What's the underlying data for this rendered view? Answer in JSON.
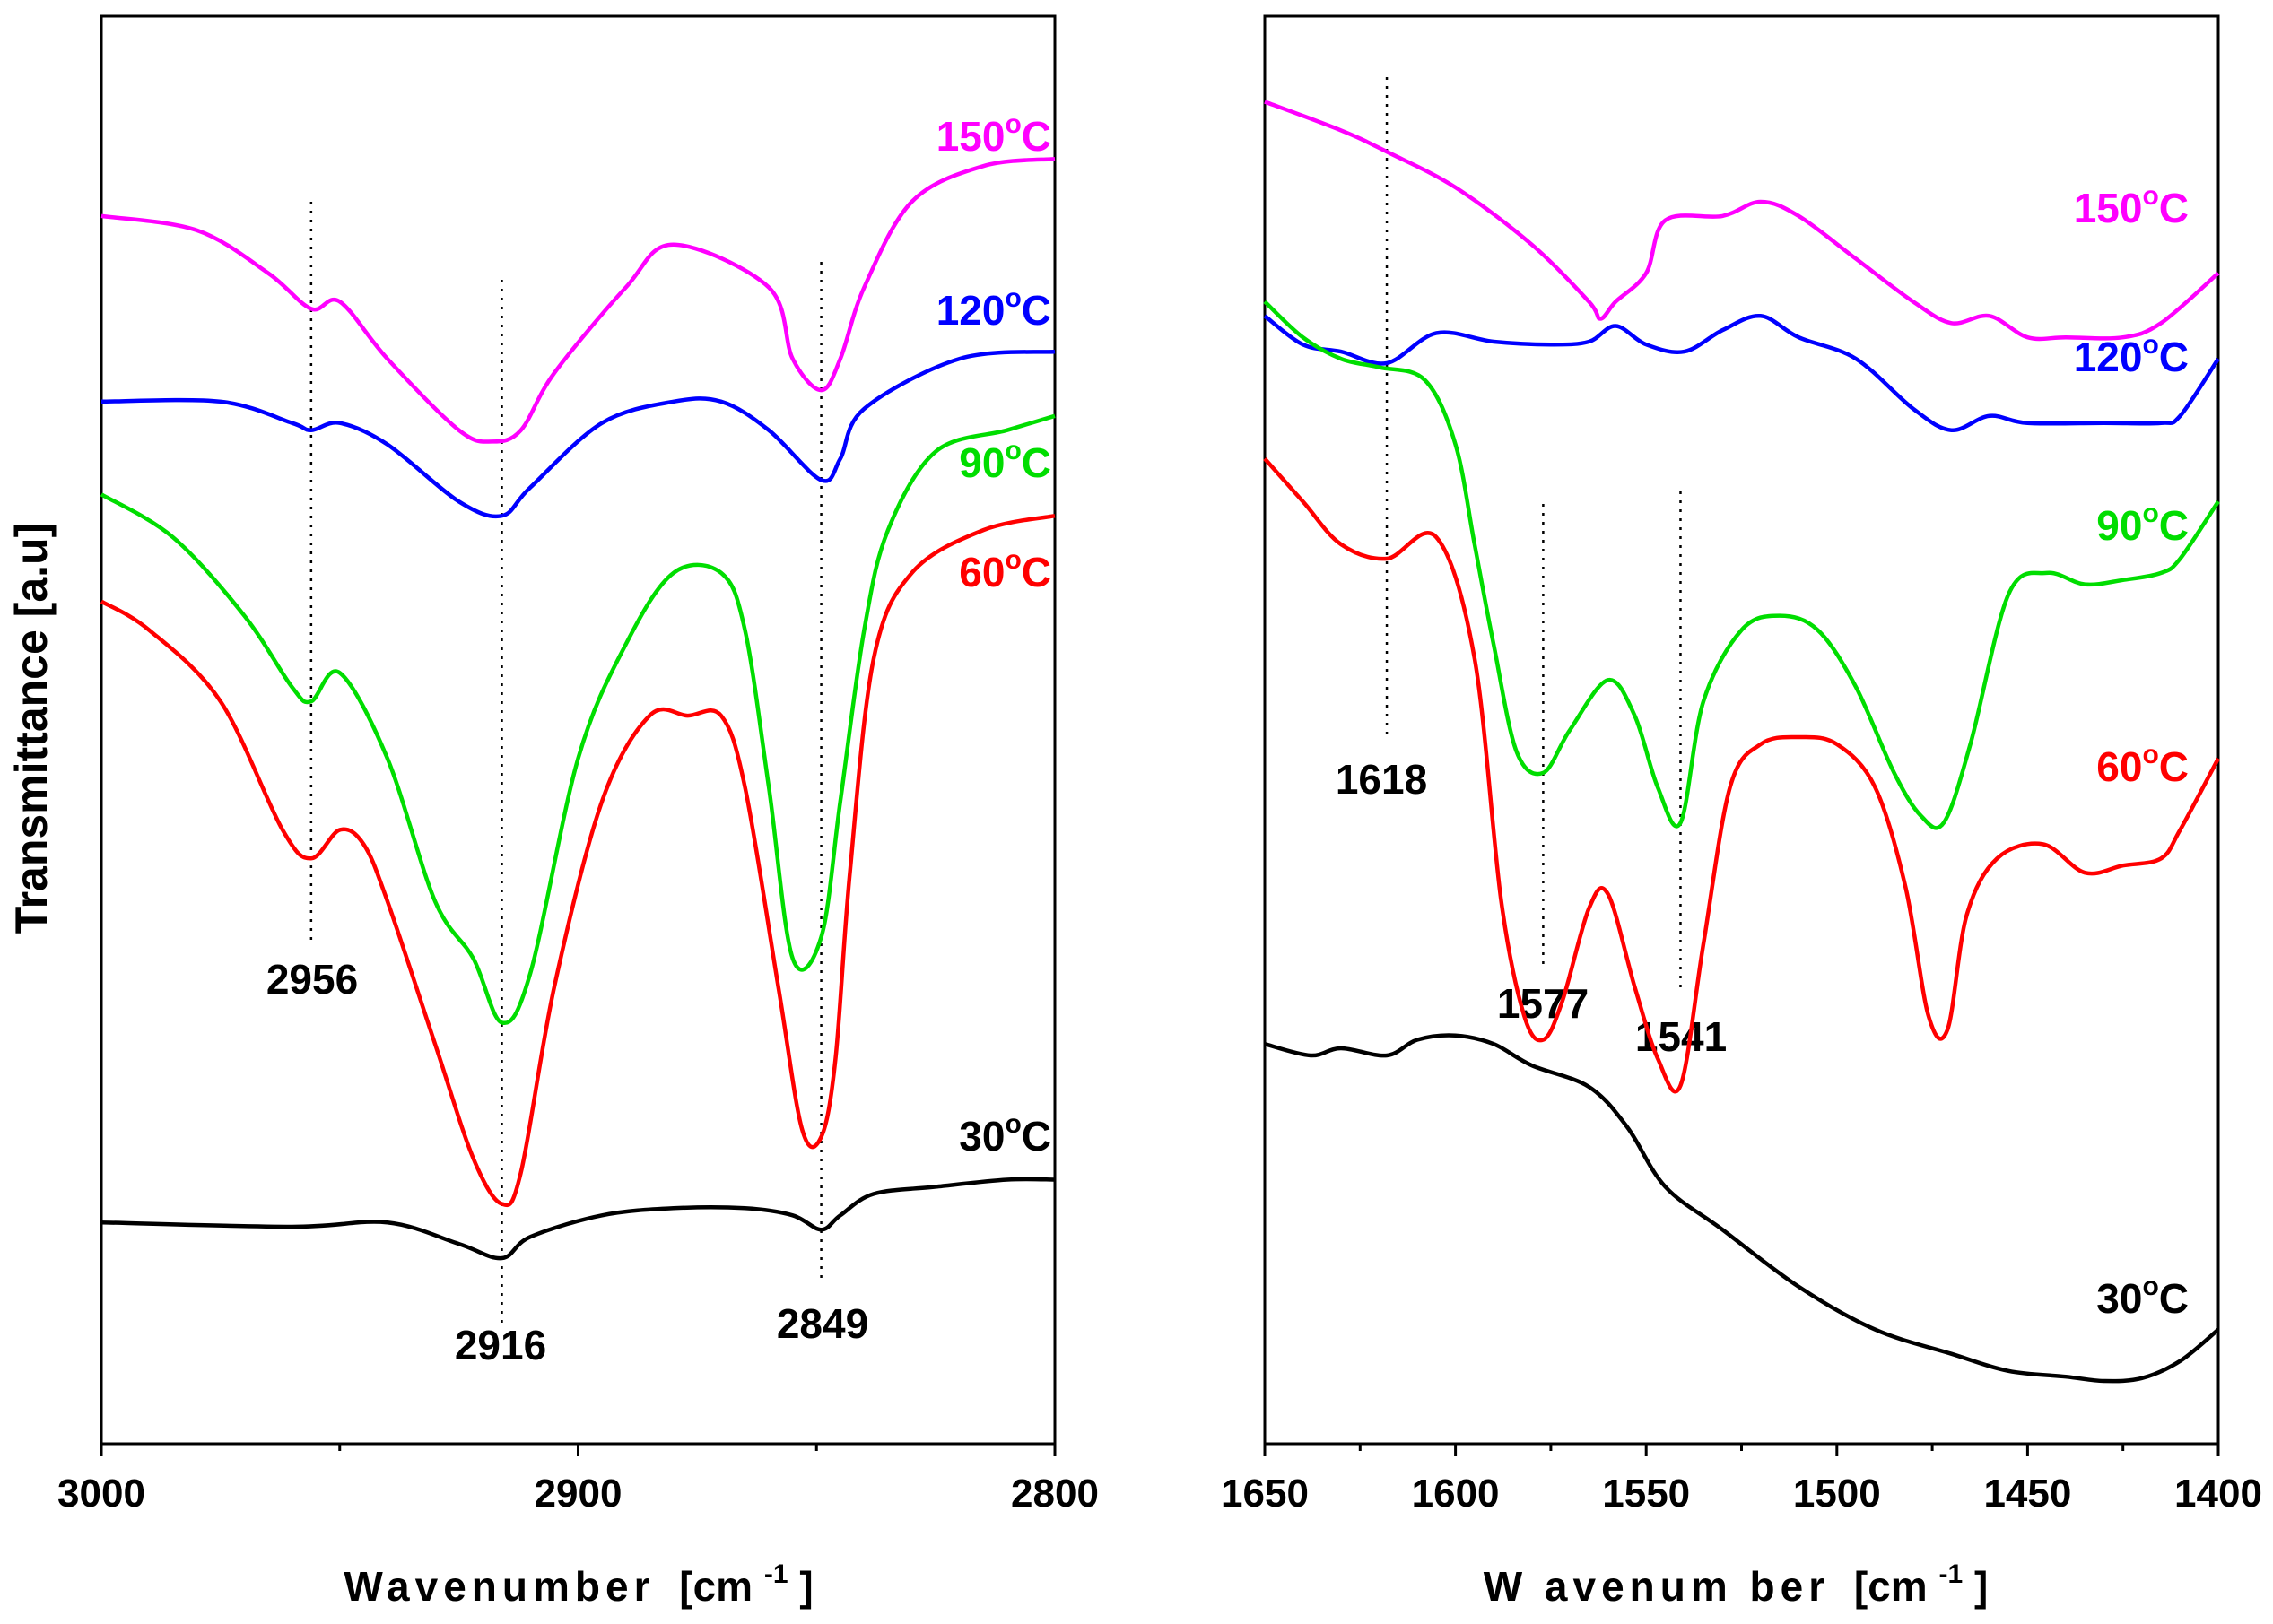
{
  "chart_data": [
    {
      "type": "line",
      "panel": "left",
      "xlabel": "Wavenumber",
      "xunit_base": "[cm",
      "xunit_exp": "-1",
      "xunit_close": "]",
      "ylabel": "Transmittance [a.u]",
      "xlim": [
        3000,
        2800
      ],
      "ylim": [
        0,
        100
      ],
      "xticks": [
        3000,
        2900,
        2800
      ],
      "xtick_labels": [
        "3000",
        "2900",
        "2800"
      ],
      "series": [
        {
          "name": "150°C",
          "label_num": "150",
          "label_unit": "C",
          "color": "#ff00ff",
          "x": [
            3000,
            2980,
            2965,
            2956,
            2950,
            2940,
            2925,
            2918,
            2912,
            2905,
            2890,
            2880,
            2860,
            2855,
            2849,
            2845,
            2840,
            2830,
            2815,
            2800
          ],
          "y": [
            86,
            85,
            82,
            79.5,
            80,
            76,
            71,
            70.2,
            71,
            75,
            81,
            84,
            81,
            76,
            73.8,
            76,
            81,
            87,
            89.5,
            90
          ]
        },
        {
          "name": "120°C",
          "label_num": "120",
          "label_unit": "C",
          "color": "#0000ff",
          "x": [
            3000,
            2975,
            2960,
            2956,
            2950,
            2940,
            2925,
            2916,
            2910,
            2895,
            2880,
            2870,
            2860,
            2849,
            2845,
            2840,
            2820,
            2800
          ],
          "y": [
            73,
            73,
            71.5,
            71,
            71.5,
            70,
            66,
            65,
            67,
            71.5,
            73,
            73,
            71,
            67.5,
            69,
            72.5,
            76,
            76.5
          ]
        },
        {
          "name": "90°C",
          "label_num": "90",
          "label_unit": "C",
          "color": "#00dd00",
          "x": [
            3000,
            2985,
            2970,
            2960,
            2956,
            2950,
            2940,
            2930,
            2922,
            2916,
            2910,
            2900,
            2890,
            2880,
            2870,
            2865,
            2860,
            2855,
            2849,
            2845,
            2840,
            2835,
            2825,
            2810,
            2800
          ],
          "y": [
            66.5,
            63.5,
            58,
            53,
            52,
            54,
            48,
            38,
            34,
            29.5,
            33,
            48,
            56,
            61,
            61,
            57,
            46,
            34,
            35.5,
            45,
            57,
            64,
            69.5,
            71,
            72
          ]
        },
        {
          "name": "60°C",
          "label_num": "60",
          "label_unit": "C",
          "color": "#ff0000",
          "x": [
            3000,
            2990,
            2975,
            2962,
            2956,
            2950,
            2945,
            2940,
            2930,
            2922,
            2916,
            2912,
            2905,
            2895,
            2885,
            2877,
            2870,
            2865,
            2858,
            2853,
            2849,
            2846,
            2843,
            2838,
            2830,
            2815,
            2800
          ],
          "y": [
            59,
            57,
            52,
            43,
            41,
            43,
            42,
            38,
            28,
            20,
            16.8,
            19,
            32,
            45,
            51,
            51,
            51,
            46,
            32,
            22,
            21.5,
            27,
            40,
            55,
            61,
            64,
            65
          ]
        },
        {
          "name": "30°C",
          "label_num": "30",
          "label_unit": "C",
          "color": "#000000",
          "x": [
            3000,
            2960,
            2940,
            2925,
            2916,
            2910,
            2895,
            2880,
            2865,
            2855,
            2849,
            2845,
            2838,
            2825,
            2810,
            2800
          ],
          "y": [
            15.5,
            15.2,
            15.5,
            14,
            13,
            14.5,
            16,
            16.5,
            16.5,
            16,
            15,
            16,
            17.5,
            18,
            18.5,
            18.5
          ]
        }
      ],
      "markers": [
        {
          "x": 2956,
          "label": "2956"
        },
        {
          "x": 2916,
          "label": "2916"
        },
        {
          "x": 2849,
          "label": "2849"
        }
      ]
    },
    {
      "type": "line",
      "panel": "right",
      "xlabel": "W avenum ber",
      "xunit_base": "[cm",
      "xunit_exp": "-1",
      "xunit_close": "]",
      "xlim": [
        1650,
        1400
      ],
      "ylim": [
        0,
        100
      ],
      "xticks": [
        1650,
        1600,
        1550,
        1500,
        1450,
        1400
      ],
      "xtick_labels": [
        "1650",
        "1600",
        "1550",
        "1500",
        "1450",
        "1400"
      ],
      "series": [
        {
          "name": "150°C",
          "label_num": "150",
          "label_unit": "C",
          "color": "#ff00ff",
          "x": [
            1650,
            1630,
            1618,
            1600,
            1580,
            1565,
            1562,
            1558,
            1550,
            1545,
            1530,
            1520,
            1510,
            1495,
            1480,
            1470,
            1460,
            1450,
            1440,
            1425,
            1415,
            1400
          ],
          "y": [
            94,
            92,
            90.5,
            88,
            84,
            80,
            78.8,
            80,
            82,
            85.7,
            86,
            87,
            86,
            83,
            80,
            78.5,
            79,
            77.5,
            77.5,
            77.5,
            78.5,
            82
          ]
        },
        {
          "name": "120°C",
          "label_num": "120",
          "label_unit": "C",
          "color": "#0000ff",
          "x": [
            1650,
            1640,
            1630,
            1618,
            1605,
            1590,
            1575,
            1565,
            1558,
            1550,
            1540,
            1530,
            1520,
            1510,
            1495,
            1480,
            1470,
            1460,
            1450,
            1430,
            1415,
            1410,
            1400
          ],
          "y": [
            79,
            77,
            76.5,
            75.7,
            77.8,
            77.2,
            77,
            77.2,
            78.3,
            77,
            76.5,
            78,
            79,
            77.5,
            76,
            72.5,
            71,
            72,
            71.5,
            71.5,
            71.5,
            72,
            76
          ]
        },
        {
          "name": "90°C",
          "label_num": "90",
          "label_unit": "C",
          "color": "#00dd00",
          "x": [
            1650,
            1640,
            1630,
            1620,
            1608,
            1600,
            1595,
            1590,
            1584,
            1577,
            1570,
            1560,
            1553,
            1547,
            1541,
            1535,
            1525,
            1515,
            1505,
            1495,
            1485,
            1478,
            1472,
            1465,
            1455,
            1445,
            1435,
            1425,
            1415,
            1410,
            1400
          ],
          "y": [
            80,
            77.5,
            76,
            75.4,
            74.5,
            70,
            63,
            56,
            48.5,
            47,
            50,
            53.5,
            51,
            46,
            43.5,
            52,
            57,
            58,
            57,
            53,
            47,
            44,
            43.5,
            49,
            59.5,
            61,
            60.2,
            60.5,
            61,
            62,
            66
          ]
        },
        {
          "name": "60°C",
          "label_num": "60",
          "label_unit": "C",
          "color": "#ff0000",
          "x": [
            1650,
            1640,
            1630,
            1618,
            1605,
            1595,
            1588,
            1582,
            1577,
            1572,
            1565,
            1560,
            1553,
            1547,
            1541,
            1535,
            1528,
            1520,
            1510,
            1500,
            1490,
            1482,
            1476,
            1471,
            1466,
            1458,
            1446,
            1435,
            1425,
            1415,
            1410,
            1400
          ],
          "y": [
            69,
            66,
            63,
            62,
            63.5,
            55,
            38,
            30,
            28.3,
            31,
            37.5,
            38.5,
            32,
            27,
            25.1,
            35,
            46,
            49,
            49.5,
            49,
            46,
            39,
            30,
            29,
            37,
            41,
            42,
            40,
            40.5,
            41,
            43,
            48
          ]
        },
        {
          "name": "30°C",
          "label_num": "30",
          "label_unit": "C",
          "color": "#000000",
          "x": [
            1650,
            1638,
            1630,
            1618,
            1610,
            1600,
            1590,
            1580,
            1565,
            1555,
            1545,
            1530,
            1510,
            1490,
            1470,
            1455,
            1440,
            1430,
            1420,
            1410,
            1400
          ],
          "y": [
            28,
            27.2,
            27.7,
            27.2,
            28.3,
            28.6,
            28,
            26.5,
            25,
            22.2,
            18,
            15,
            11,
            8,
            6.3,
            5.1,
            4.7,
            4.4,
            4.6,
            5.8,
            8
          ]
        }
      ],
      "markers": [
        {
          "x": 1618,
          "label": "1618"
        },
        {
          "x": 1577,
          "label": "1577"
        },
        {
          "x": 1541,
          "label": "1541"
        }
      ]
    }
  ]
}
